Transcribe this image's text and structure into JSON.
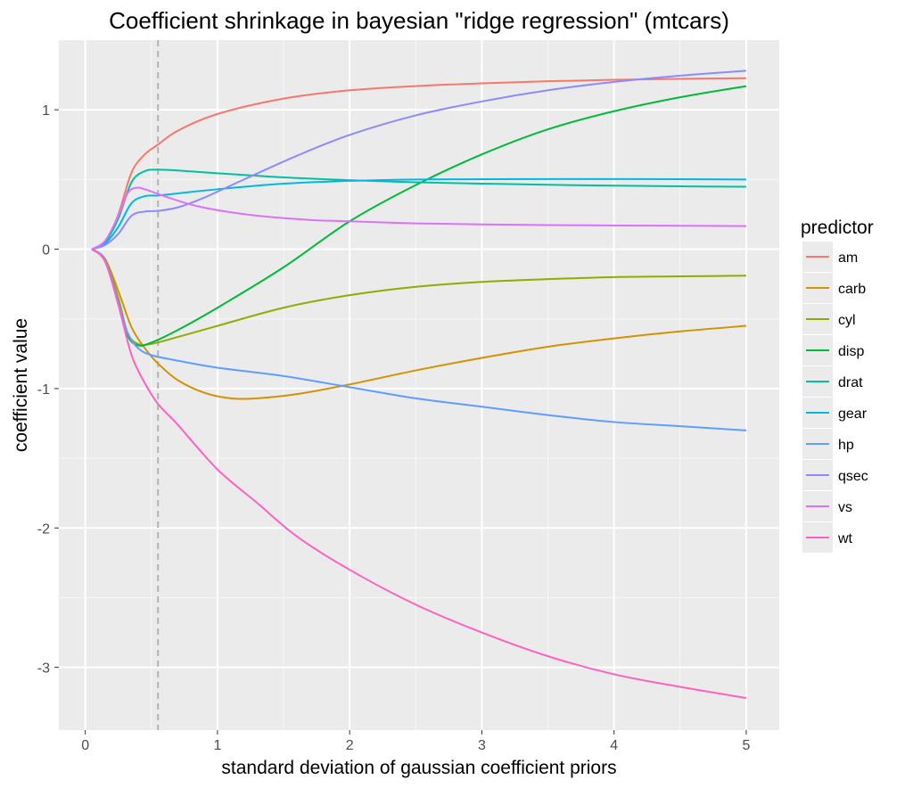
{
  "chart_data": {
    "type": "line",
    "title": "Coefficient shrinkage in bayesian \"ridge regression\" (mtcars)",
    "xlabel": "standard deviation of gaussian coefficient priors",
    "ylabel": "coefficient value",
    "xlim": [
      -0.2,
      5.25
    ],
    "ylim": [
      -3.45,
      1.5
    ],
    "x_ticks": [
      0,
      1,
      2,
      3,
      4,
      5
    ],
    "x_tick_labels": [
      "0",
      "1",
      "2",
      "3",
      "4",
      "5"
    ],
    "y_ticks": [
      1,
      0,
      -1,
      -2,
      -3
    ],
    "y_tick_labels": [
      "1",
      "0",
      "-1",
      "-2",
      "-3"
    ],
    "background": "#ebebeb",
    "grid": true,
    "vline": {
      "x": 0.55,
      "color": "#b3b3b3",
      "style": "dashed"
    },
    "legend": {
      "title": "predictor",
      "position": "right"
    },
    "series": [
      {
        "name": "am",
        "color": "#F8766D",
        "points": [
          [
            0.05,
            0
          ],
          [
            0.15,
            0.05
          ],
          [
            0.25,
            0.25
          ],
          [
            0.35,
            0.55
          ],
          [
            0.45,
            0.68
          ],
          [
            0.55,
            0.75
          ],
          [
            0.7,
            0.85
          ],
          [
            1.0,
            0.97
          ],
          [
            1.5,
            1.08
          ],
          [
            2.0,
            1.14
          ],
          [
            2.5,
            1.17
          ],
          [
            3.0,
            1.19
          ],
          [
            3.5,
            1.205
          ],
          [
            4.0,
            1.215
          ],
          [
            4.5,
            1.222
          ],
          [
            5.0,
            1.227
          ]
        ]
      },
      {
        "name": "carb",
        "color": "#D39200",
        "points": [
          [
            0.05,
            0
          ],
          [
            0.15,
            -0.07
          ],
          [
            0.25,
            -0.3
          ],
          [
            0.35,
            -0.56
          ],
          [
            0.45,
            -0.71
          ],
          [
            0.55,
            -0.82
          ],
          [
            0.7,
            -0.94
          ],
          [
            0.9,
            -1.03
          ],
          [
            1.1,
            -1.07
          ],
          [
            1.3,
            -1.07
          ],
          [
            1.6,
            -1.04
          ],
          [
            2.0,
            -0.97
          ],
          [
            2.5,
            -0.87
          ],
          [
            3.0,
            -0.78
          ],
          [
            3.5,
            -0.7
          ],
          [
            4.0,
            -0.64
          ],
          [
            4.5,
            -0.59
          ],
          [
            5.0,
            -0.55
          ]
        ]
      },
      {
        "name": "cyl",
        "color": "#93AA00",
        "points": [
          [
            0.05,
            0
          ],
          [
            0.15,
            -0.08
          ],
          [
            0.25,
            -0.35
          ],
          [
            0.32,
            -0.6
          ],
          [
            0.4,
            -0.68
          ],
          [
            0.5,
            -0.68
          ],
          [
            0.7,
            -0.63
          ],
          [
            1.0,
            -0.55
          ],
          [
            1.5,
            -0.42
          ],
          [
            2.0,
            -0.33
          ],
          [
            2.5,
            -0.27
          ],
          [
            3.0,
            -0.235
          ],
          [
            3.5,
            -0.215
          ],
          [
            4.0,
            -0.2
          ],
          [
            4.5,
            -0.195
          ],
          [
            5.0,
            -0.19
          ]
        ]
      },
      {
        "name": "disp",
        "color": "#00BA38",
        "points": [
          [
            0.05,
            0
          ],
          [
            0.15,
            -0.08
          ],
          [
            0.25,
            -0.38
          ],
          [
            0.32,
            -0.62
          ],
          [
            0.4,
            -0.69
          ],
          [
            0.5,
            -0.67
          ],
          [
            0.7,
            -0.58
          ],
          [
            1.0,
            -0.42
          ],
          [
            1.5,
            -0.13
          ],
          [
            2.0,
            0.2
          ],
          [
            2.5,
            0.46
          ],
          [
            3.0,
            0.68
          ],
          [
            3.5,
            0.86
          ],
          [
            4.0,
            0.99
          ],
          [
            4.5,
            1.09
          ],
          [
            5.0,
            1.17
          ]
        ]
      },
      {
        "name": "drat",
        "color": "#00C19F",
        "points": [
          [
            0.05,
            0
          ],
          [
            0.15,
            0.05
          ],
          [
            0.25,
            0.22
          ],
          [
            0.35,
            0.48
          ],
          [
            0.45,
            0.56
          ],
          [
            0.55,
            0.57
          ],
          [
            0.7,
            0.565
          ],
          [
            1.0,
            0.545
          ],
          [
            1.5,
            0.515
          ],
          [
            2.0,
            0.495
          ],
          [
            2.5,
            0.48
          ],
          [
            3.0,
            0.47
          ],
          [
            3.5,
            0.462
          ],
          [
            4.0,
            0.456
          ],
          [
            4.5,
            0.451
          ],
          [
            5.0,
            0.448
          ]
        ]
      },
      {
        "name": "gear",
        "color": "#00B9E3",
        "points": [
          [
            0.05,
            0
          ],
          [
            0.15,
            0.04
          ],
          [
            0.25,
            0.16
          ],
          [
            0.35,
            0.33
          ],
          [
            0.45,
            0.38
          ],
          [
            0.55,
            0.385
          ],
          [
            0.7,
            0.4
          ],
          [
            1.0,
            0.43
          ],
          [
            1.5,
            0.47
          ],
          [
            2.0,
            0.49
          ],
          [
            2.5,
            0.5
          ],
          [
            3.0,
            0.502
          ],
          [
            3.5,
            0.503
          ],
          [
            4.0,
            0.503
          ],
          [
            4.5,
            0.502
          ],
          [
            5.0,
            0.5
          ]
        ]
      },
      {
        "name": "hp",
        "color": "#619CFF",
        "points": [
          [
            0.05,
            0
          ],
          [
            0.15,
            -0.08
          ],
          [
            0.25,
            -0.38
          ],
          [
            0.32,
            -0.6
          ],
          [
            0.4,
            -0.71
          ],
          [
            0.5,
            -0.76
          ],
          [
            0.7,
            -0.8
          ],
          [
            1.0,
            -0.85
          ],
          [
            1.5,
            -0.91
          ],
          [
            2.0,
            -0.99
          ],
          [
            2.5,
            -1.07
          ],
          [
            3.0,
            -1.13
          ],
          [
            3.5,
            -1.19
          ],
          [
            4.0,
            -1.24
          ],
          [
            4.5,
            -1.27
          ],
          [
            5.0,
            -1.3
          ]
        ]
      },
      {
        "name": "qsec",
        "color": "#8B8BFF",
        "points": [
          [
            0.05,
            0
          ],
          [
            0.15,
            0.03
          ],
          [
            0.25,
            0.11
          ],
          [
            0.35,
            0.24
          ],
          [
            0.45,
            0.27
          ],
          [
            0.55,
            0.275
          ],
          [
            0.7,
            0.3
          ],
          [
            0.9,
            0.37
          ],
          [
            1.2,
            0.5
          ],
          [
            1.6,
            0.67
          ],
          [
            2.0,
            0.82
          ],
          [
            2.5,
            0.96
          ],
          [
            3.0,
            1.06
          ],
          [
            3.5,
            1.14
          ],
          [
            4.0,
            1.2
          ],
          [
            4.5,
            1.245
          ],
          [
            5.0,
            1.28
          ]
        ]
      },
      {
        "name": "vs",
        "color": "#DB72FB",
        "points": [
          [
            0.05,
            0
          ],
          [
            0.15,
            0.06
          ],
          [
            0.25,
            0.24
          ],
          [
            0.32,
            0.4
          ],
          [
            0.38,
            0.44
          ],
          [
            0.45,
            0.43
          ],
          [
            0.6,
            0.38
          ],
          [
            0.8,
            0.32
          ],
          [
            1.0,
            0.28
          ],
          [
            1.3,
            0.24
          ],
          [
            1.7,
            0.21
          ],
          [
            2.0,
            0.2
          ],
          [
            2.5,
            0.185
          ],
          [
            3.0,
            0.178
          ],
          [
            3.5,
            0.173
          ],
          [
            4.0,
            0.17
          ],
          [
            4.5,
            0.168
          ],
          [
            5.0,
            0.166
          ]
        ]
      },
      {
        "name": "wt",
        "color": "#FF61C3",
        "points": [
          [
            0.05,
            0
          ],
          [
            0.15,
            -0.09
          ],
          [
            0.25,
            -0.4
          ],
          [
            0.35,
            -0.76
          ],
          [
            0.45,
            -0.96
          ],
          [
            0.55,
            -1.11
          ],
          [
            0.7,
            -1.26
          ],
          [
            1.0,
            -1.58
          ],
          [
            1.3,
            -1.82
          ],
          [
            1.6,
            -2.06
          ],
          [
            2.0,
            -2.3
          ],
          [
            2.5,
            -2.55
          ],
          [
            3.0,
            -2.75
          ],
          [
            3.5,
            -2.92
          ],
          [
            4.0,
            -3.05
          ],
          [
            4.5,
            -3.14
          ],
          [
            5.0,
            -3.22
          ]
        ]
      }
    ]
  }
}
